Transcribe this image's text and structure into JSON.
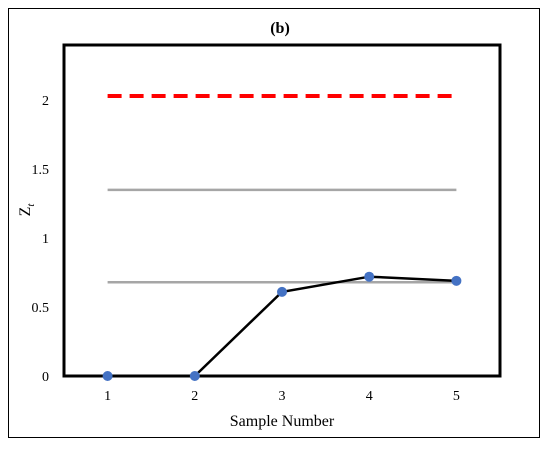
{
  "chart_data": {
    "type": "line",
    "title": "(b)",
    "xlabel": "Sample Number",
    "ylabel": "Zt",
    "ylabel_main": "Z",
    "ylabel_sub": "t",
    "x": [
      1,
      2,
      3,
      4,
      5
    ],
    "x_ticks": [
      "1",
      "2",
      "3",
      "4",
      "5"
    ],
    "xlim": [
      0.5,
      5.5
    ],
    "ylim": [
      0,
      2.4
    ],
    "y_ticks": [
      "0",
      "0.5",
      "1",
      "1.5",
      "2"
    ],
    "y_tick_values": [
      0,
      0.5,
      1,
      1.5,
      2
    ],
    "series": [
      {
        "values": [
          0,
          0,
          0.61,
          0.72,
          0.69
        ],
        "color": "#000000",
        "marker_color": "#4472C4"
      }
    ],
    "reference_lines": [
      {
        "value": 2.03,
        "color": "#ff0000",
        "style": "dashed"
      },
      {
        "value": 1.35,
        "color": "#a6a6a6",
        "style": "solid"
      },
      {
        "value": 0.68,
        "color": "#a6a6a6",
        "style": "solid"
      }
    ],
    "grid": false,
    "legend": "none"
  }
}
